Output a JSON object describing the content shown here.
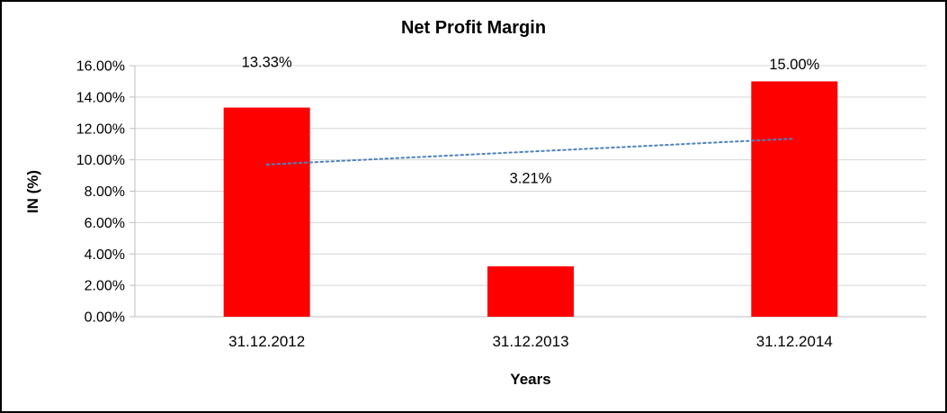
{
  "chart_data": {
    "type": "bar",
    "title": "Net Profit Margin",
    "xlabel": "Years",
    "ylabel": "IN (%)",
    "categories": [
      "31.12.2012",
      "31.12.2013",
      "31.12.2014"
    ],
    "values": [
      13.33,
      3.21,
      15.0
    ],
    "data_labels": [
      "13.33%",
      "3.21%",
      "15.00%"
    ],
    "ylim": [
      0,
      16
    ],
    "ytick_step": 2,
    "ytick_labels": [
      "0.00%",
      "2.00%",
      "4.00%",
      "6.00%",
      "8.00%",
      "10.00%",
      "12.00%",
      "14.00%",
      "16.00%"
    ],
    "grid": true,
    "legend": "none",
    "bar_color": "#FF0000",
    "gridline_color": "#D6D6D6",
    "axis_color": "#BFBFBF",
    "text_color": "#000000",
    "trendline": {
      "type": "linear",
      "style": "dotted",
      "color": "#4F81BD",
      "points": [
        {
          "x": "31.12.2012",
          "y": 9.7
        },
        {
          "x": "31.12.2014",
          "y": 11.35
        }
      ]
    },
    "label_positions_pct": [
      16.2,
      8.8,
      16.05
    ]
  }
}
